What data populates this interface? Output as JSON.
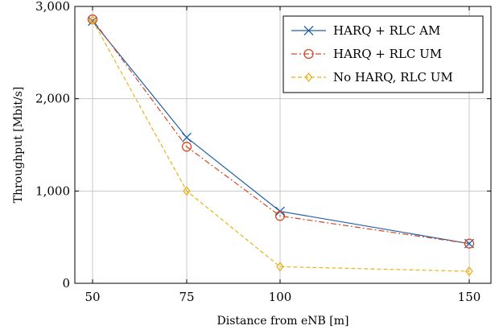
{
  "chart_data": {
    "type": "line",
    "xlabel": "Distance from eNB [m]",
    "ylabel": "Throughput [Mbit/s]",
    "x": [
      50,
      75,
      100,
      150
    ],
    "x_tick_labels": [
      "50",
      "75",
      "100",
      "150"
    ],
    "y_ticks": [
      0,
      1000,
      2000,
      3000
    ],
    "y_tick_labels": [
      "0",
      "1,000",
      "2,000",
      "3,000"
    ],
    "ylim": [
      0,
      3000
    ],
    "grid": true,
    "legend_position": "top-right",
    "series": [
      {
        "name": "HARQ + RLC AM",
        "values": [
          2840,
          1580,
          780,
          430
        ],
        "color": "#1f5fa8",
        "marker": "x",
        "dash": "solid"
      },
      {
        "name": "HARQ + RLC UM",
        "values": [
          2860,
          1480,
          730,
          430
        ],
        "color": "#d2492a",
        "marker": "circle",
        "dash": "dash-dot"
      },
      {
        "name": "No HARQ, RLC UM",
        "values": [
          2850,
          1000,
          180,
          130
        ],
        "color": "#e8b416",
        "marker": "diamond",
        "dash": "dashed"
      }
    ]
  }
}
